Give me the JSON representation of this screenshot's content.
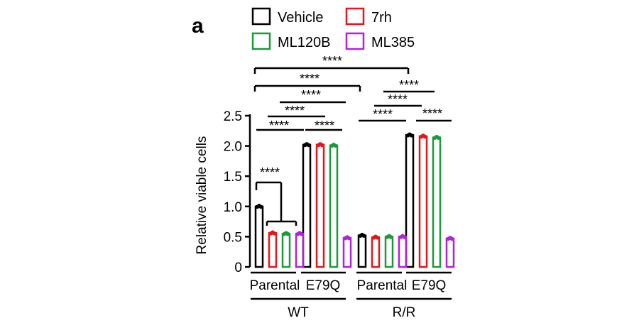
{
  "panel_label": "a",
  "chart_data": {
    "type": "bar",
    "title": "",
    "ylabel": "Relative viable cells",
    "xlabel": "",
    "ylim": [
      0,
      2.5
    ],
    "yticks": [
      0,
      0.5,
      1.0,
      1.5,
      2.0,
      2.5
    ],
    "ytick_labels": [
      "0",
      "0.5",
      "1.0",
      "1.5",
      "2.0",
      "2.5"
    ],
    "legend_position": "top",
    "groups": [
      {
        "label": "Parental",
        "parent": "WT"
      },
      {
        "label": "E79Q",
        "parent": "WT"
      },
      {
        "label": "Parental",
        "parent": "R/R"
      },
      {
        "label": "E79Q",
        "parent": "R/R"
      }
    ],
    "parent_groups": [
      "WT",
      "R/R"
    ],
    "series": [
      {
        "name": "Vehicle",
        "color": "#000000",
        "values": [
          1.0,
          2.02,
          0.52,
          2.18
        ]
      },
      {
        "name": "7rh",
        "color": "#e8141b",
        "values": [
          0.56,
          2.02,
          0.49,
          2.16
        ]
      },
      {
        "name": "ML120B",
        "color": "#1a9b3a",
        "values": [
          0.55,
          2.01,
          0.5,
          2.14
        ]
      },
      {
        "name": "ML385",
        "color": "#b320e0",
        "values": [
          0.55,
          0.48,
          0.5,
          0.47
        ]
      }
    ],
    "significance_label": "****"
  }
}
